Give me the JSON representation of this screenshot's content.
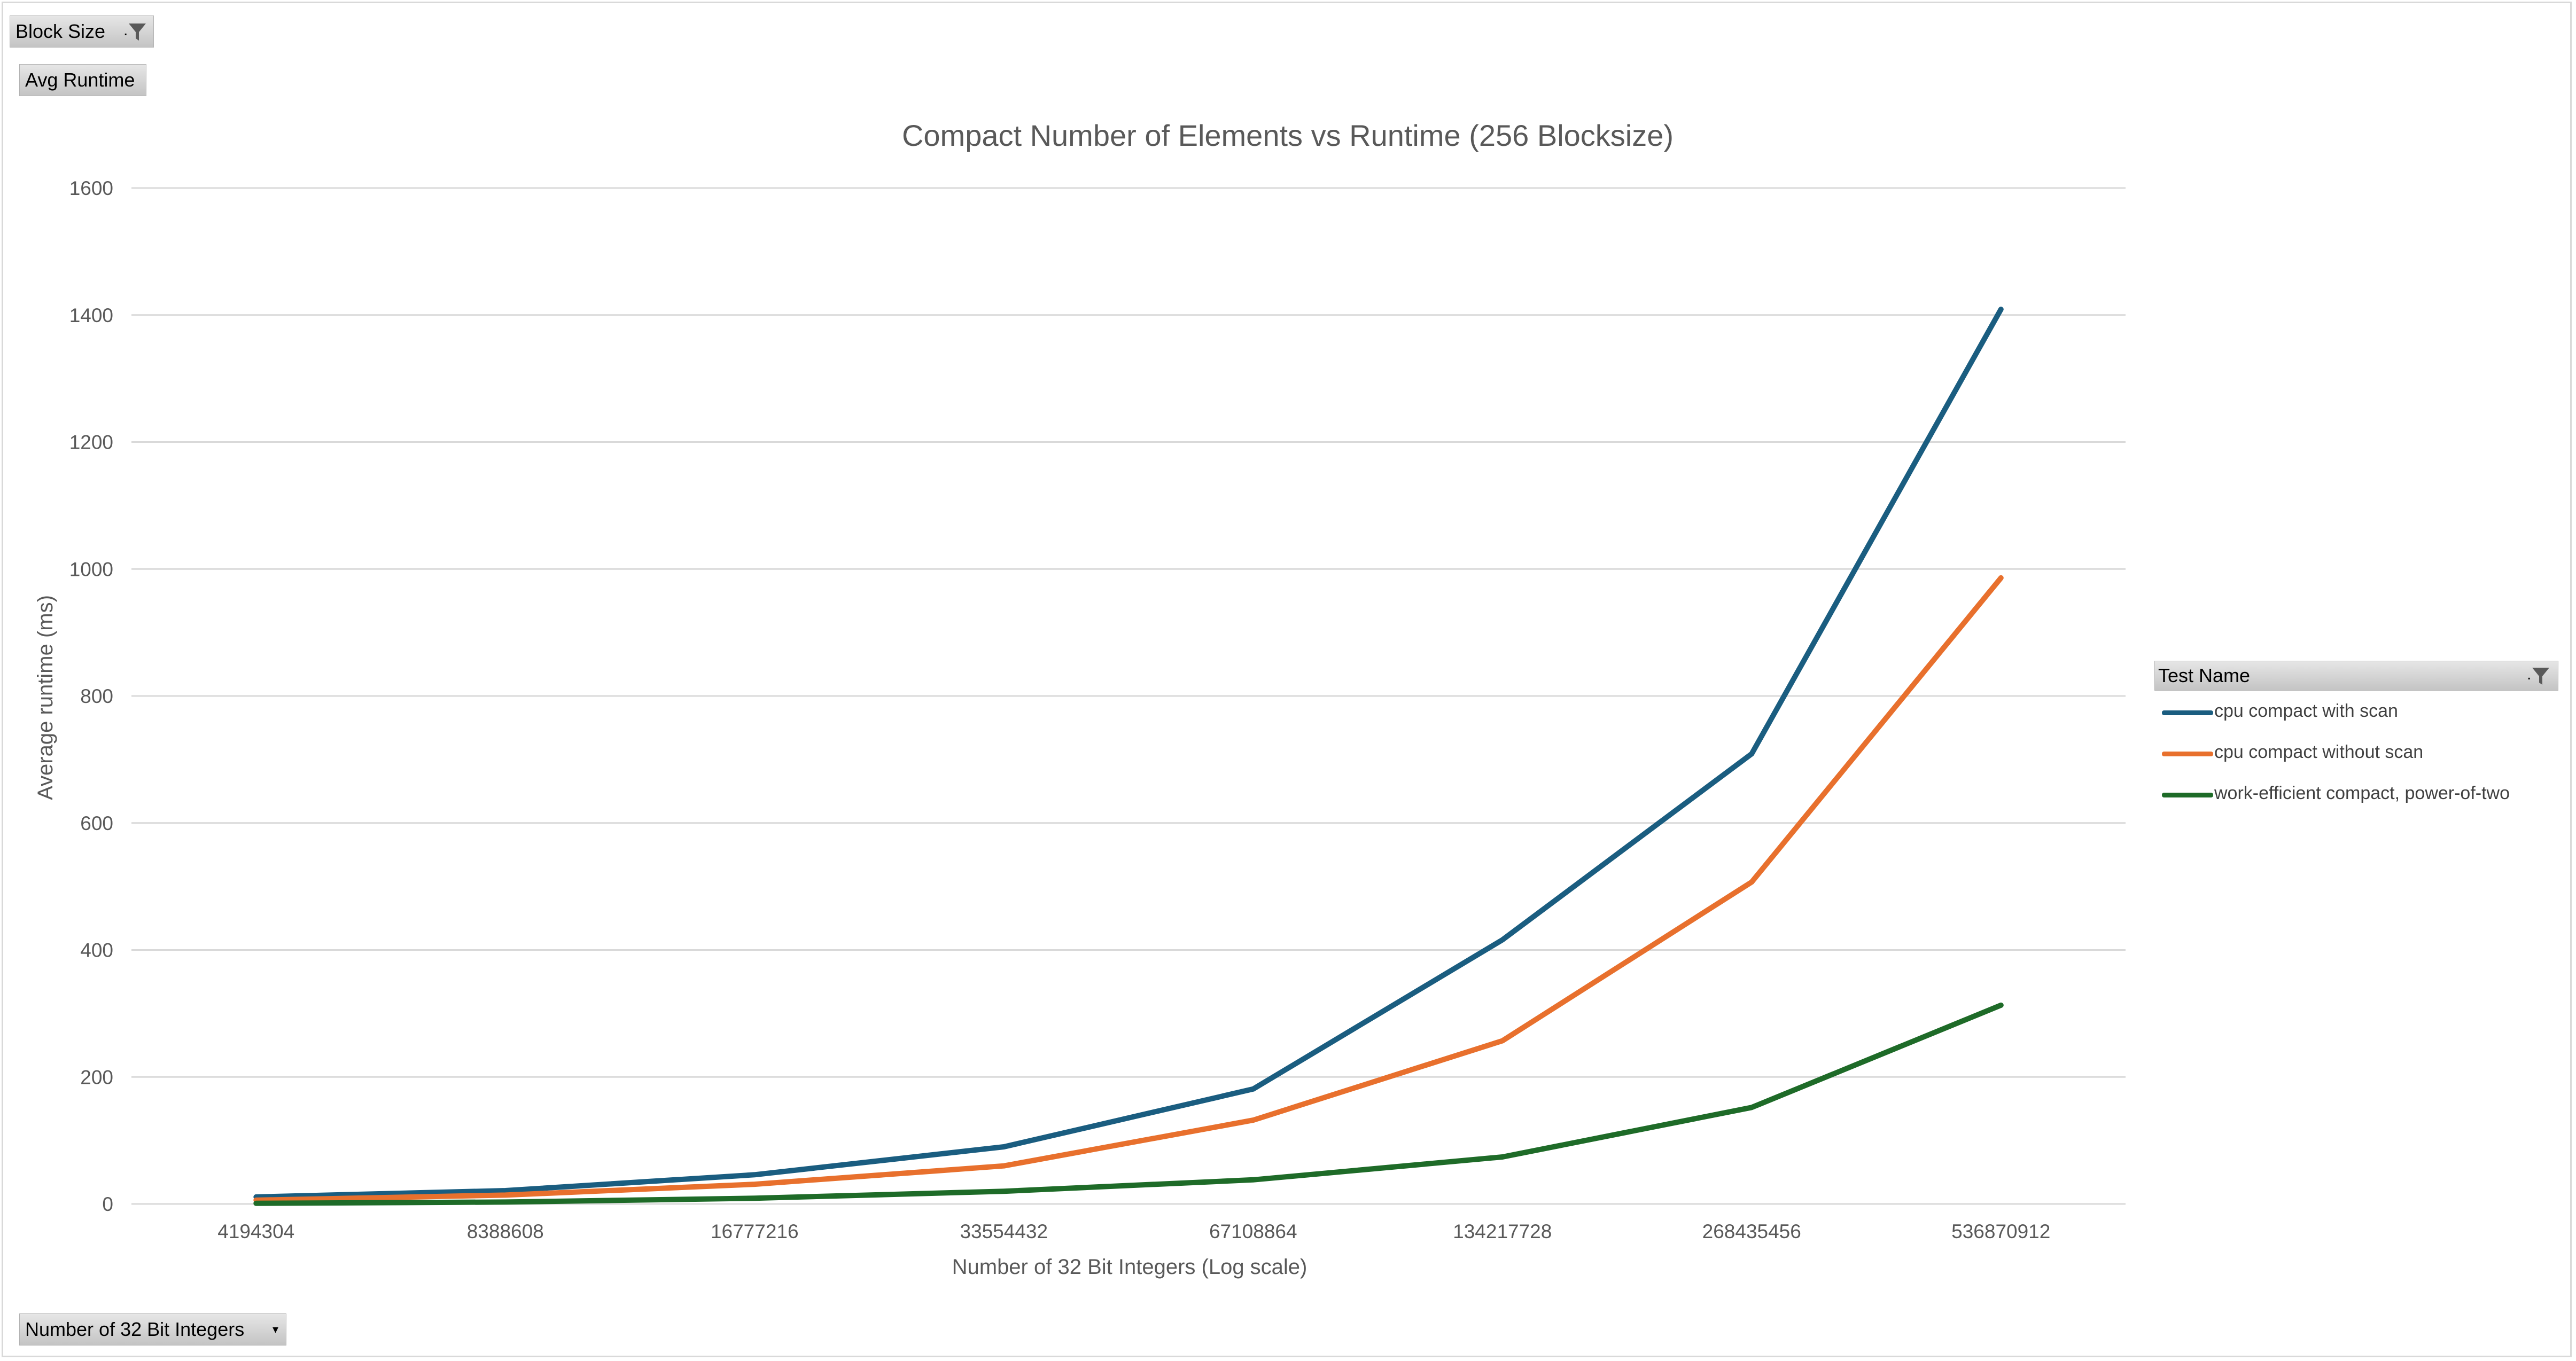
{
  "pivot_fields": {
    "block_size_label": "Block Size",
    "avg_runtime_label": "Avg Runtime",
    "num_ints_label": "Number of 32 Bit Integers",
    "legend_header_label": "Test Name"
  },
  "icons": {
    "filter": "filter-icon",
    "dropdown": "dropdown-arrow-icon"
  },
  "chart_data": {
    "type": "line",
    "title": "Compact Number of Elements vs Runtime (256 Blocksize)",
    "xlabel": "Number of 32 Bit Integers (Log scale)",
    "ylabel": "Average runtime (ms)",
    "categories": [
      "4194304",
      "8388608",
      "16777216",
      "33554432",
      "67108864",
      "134217728",
      "268435456",
      "536870912"
    ],
    "ylim": [
      0,
      1600
    ],
    "yticks": [
      0,
      200,
      400,
      600,
      800,
      1000,
      1200,
      1400,
      1600
    ],
    "grid": true,
    "legend_position": "right",
    "series": [
      {
        "name": "cpu compact with scan",
        "color": "#1a5d80",
        "values": [
          11,
          21,
          46,
          90,
          181,
          416,
          709,
          1409
        ]
      },
      {
        "name": "cpu compact without scan",
        "color": "#e8702d",
        "values": [
          6,
          14,
          31,
          60,
          132,
          257,
          507,
          986
        ]
      },
      {
        "name": "work-efficient compact, power-of-two",
        "color": "#1e6b28",
        "values": [
          1,
          3,
          9,
          20,
          38,
          74,
          152,
          313
        ]
      }
    ]
  }
}
